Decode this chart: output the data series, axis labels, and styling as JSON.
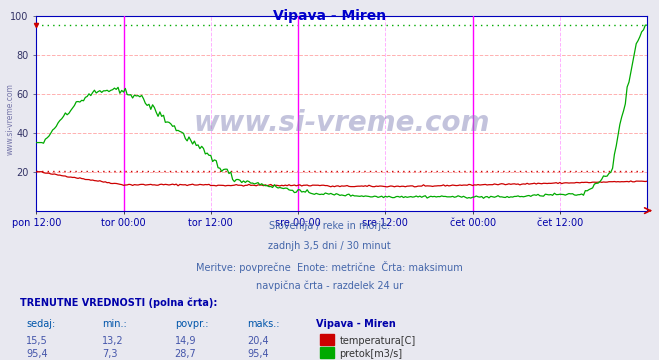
{
  "title": "Vipava - Miren",
  "title_color": "#0000cc",
  "bg_color": "#e8e8f0",
  "plot_bg_color": "#ffffff",
  "grid_color_h": "#ffb0b0",
  "grid_color_v": "#ffb0ff",
  "xlabel_color": "#0000aa",
  "x_labels": [
    "pon 12:00",
    "tor 00:00",
    "tor 12:00",
    "sre 00:00",
    "sre 12:00",
    "čet 00:00",
    "čet 12:00"
  ],
  "x_ticks": [
    0,
    24,
    48,
    72,
    96,
    120,
    144
  ],
  "x_max": 168,
  "y_min": 0,
  "y_max": 100,
  "y_ticks": [
    20,
    40,
    60,
    80,
    100
  ],
  "temp_color": "#cc0000",
  "flow_color": "#00aa00",
  "max_flow_value": 95.4,
  "max_temp_value": 20.4,
  "vline_color": "#ff00ff",
  "vline_positions": [
    24,
    72,
    120
  ],
  "watermark": "www.si-vreme.com",
  "subtitle_lines": [
    "Slovenija / reke in morje.",
    "zadnjh 3,5 dni / 30 minut",
    "Meritve: povprečne  Enote: metrične  Črta: maksimum",
    "navpična črta - razdelek 24 ur"
  ],
  "table_header": "TRENUTNE VREDNOSTI (polna črta):",
  "col_headers": [
    "sedaj:",
    "min.:",
    "povpr.:",
    "maks.:",
    "Vipava - Miren"
  ],
  "temp_row": [
    "15,5",
    "13,2",
    "14,9",
    "20,4",
    "temperatura[C]"
  ],
  "flow_row": [
    "95,4",
    "7,3",
    "28,7",
    "95,4",
    "pretok[m3/s]"
  ],
  "side_label": "www.si-vreme.com",
  "axis_color": "#0000bb",
  "right_arrow_color": "#cc0000"
}
